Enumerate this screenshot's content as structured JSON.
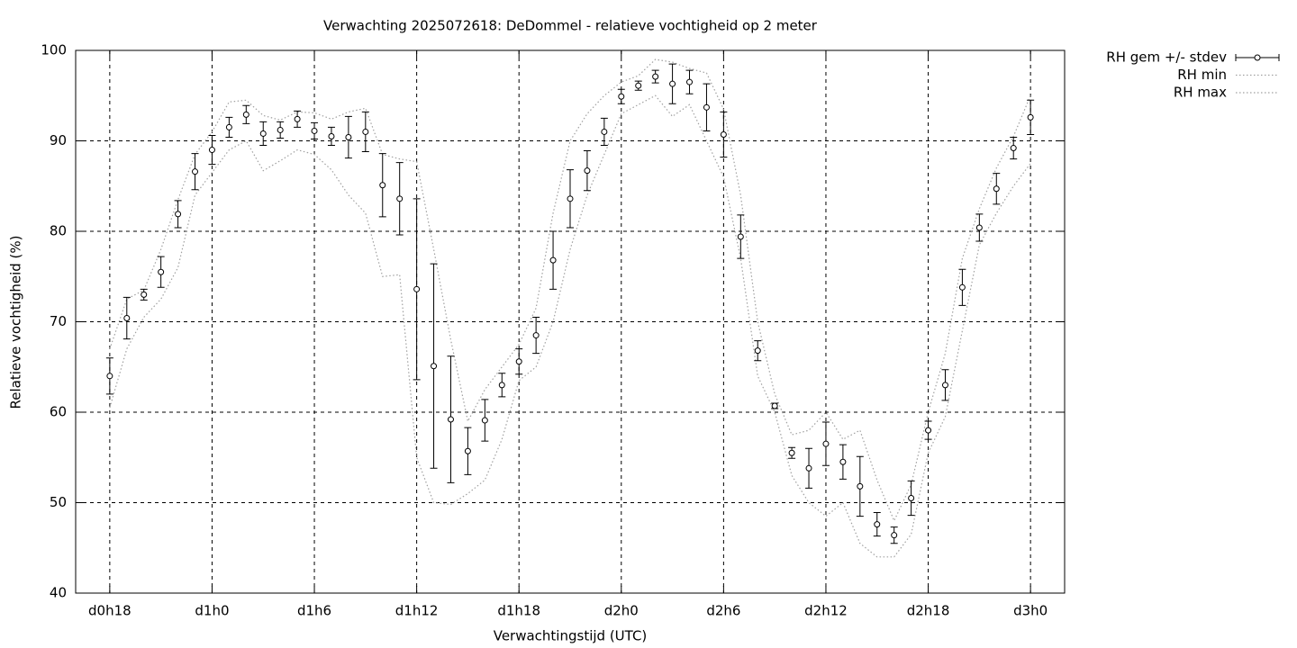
{
  "chart_data": {
    "type": "errorbar-line",
    "title": "Verwachting 2025072618: DeDommel - relatieve vochtigheid op 2 meter",
    "xlabel": "Verwachtingstijd (UTC)",
    "ylabel": "Relatieve vochtigheid (%)",
    "x": [
      18,
      19,
      20,
      21,
      22,
      23,
      24,
      25,
      26,
      27,
      28,
      29,
      30,
      31,
      32,
      33,
      34,
      35,
      36,
      37,
      38,
      39,
      40,
      41,
      42,
      43,
      44,
      45,
      46,
      47,
      48,
      49,
      50,
      51,
      52,
      53,
      54,
      55,
      56,
      57,
      58,
      59,
      60,
      61,
      62,
      63,
      64,
      65,
      66,
      67,
      68,
      69,
      70,
      71,
      72
    ],
    "series": [
      {
        "name": "RH gem +/- stdev",
        "color": "#000000",
        "style": "errorbars",
        "values": [
          64.0,
          70.4,
          73.0,
          75.5,
          81.9,
          86.6,
          89.0,
          91.5,
          92.9,
          90.8,
          91.2,
          92.4,
          91.1,
          90.5,
          90.4,
          91.0,
          85.1,
          83.6,
          73.6,
          65.1,
          59.2,
          55.7,
          59.1,
          63.0,
          65.6,
          68.5,
          76.8,
          83.6,
          86.7,
          91.0,
          94.9,
          96.1,
          97.1,
          96.3,
          96.5,
          93.7,
          90.7,
          79.4,
          66.8,
          60.7,
          55.5,
          53.8,
          56.5,
          54.5,
          51.8,
          47.6,
          46.4,
          50.5,
          58.0,
          63.0,
          73.8,
          80.4,
          84.7,
          89.2,
          92.6
        ],
        "errors": [
          2.0,
          2.3,
          0.6,
          1.7,
          1.5,
          2.0,
          1.6,
          1.1,
          1.0,
          1.3,
          0.9,
          0.9,
          0.9,
          1.0,
          2.3,
          2.2,
          3.5,
          4.0,
          10.0,
          11.3,
          7.0,
          2.6,
          2.3,
          1.3,
          1.4,
          2.0,
          3.2,
          3.2,
          2.2,
          1.5,
          0.8,
          0.5,
          0.7,
          2.2,
          1.3,
          2.6,
          2.5,
          2.4,
          1.1,
          0.3,
          0.6,
          2.2,
          2.4,
          1.9,
          3.3,
          1.3,
          0.9,
          1.9,
          1.0,
          1.7,
          2.0,
          1.5,
          1.7,
          1.2,
          1.9
        ]
      },
      {
        "name": "RH min",
        "color": "#a0a0a0",
        "style": "dotted",
        "values": [
          60.5,
          67,
          70.5,
          72.5,
          76,
          84,
          86.5,
          89,
          90,
          86.7,
          87.8,
          89,
          88.5,
          86.8,
          84,
          82,
          75,
          75.2,
          55,
          50,
          49.8,
          51,
          52.5,
          57,
          63.5,
          65,
          70,
          78,
          84,
          88.5,
          93,
          94,
          95,
          92.7,
          94,
          90,
          86,
          77,
          64,
          60,
          53,
          50,
          48.5,
          50,
          45.5,
          44,
          44,
          46.5,
          55.5,
          59.5,
          69,
          78.5,
          82,
          85,
          87.5
        ]
      },
      {
        "name": "RH max",
        "color": "#a0a0a0",
        "style": "dotted",
        "values": [
          67,
          72.5,
          73.5,
          78,
          83.5,
          88.5,
          91,
          94.3,
          94.5,
          92.8,
          92.3,
          93.2,
          93.1,
          92.4,
          93.2,
          93.6,
          88.5,
          88,
          87.7,
          78,
          68,
          59,
          62.5,
          65,
          67.5,
          71.5,
          82,
          90,
          93,
          95,
          96.5,
          97.2,
          99,
          98.7,
          98,
          97.5,
          93.5,
          84,
          70,
          62,
          57.5,
          58,
          60,
          57,
          58,
          52.5,
          48,
          52,
          60,
          66.5,
          77,
          82.5,
          87,
          90.5,
          95
        ]
      }
    ],
    "xlim": [
      16,
      74
    ],
    "xticks": [
      {
        "value": 18,
        "label": "d0h18"
      },
      {
        "value": 24,
        "label": "d1h0"
      },
      {
        "value": 30,
        "label": "d1h6"
      },
      {
        "value": 36,
        "label": "d1h12"
      },
      {
        "value": 42,
        "label": "d1h18"
      },
      {
        "value": 48,
        "label": "d2h0"
      },
      {
        "value": 54,
        "label": "d2h6"
      },
      {
        "value": 60,
        "label": "d2h12"
      },
      {
        "value": 66,
        "label": "d2h18"
      },
      {
        "value": 72,
        "label": "d3h0"
      }
    ],
    "ylim": [
      40,
      100
    ],
    "yticks": [
      40,
      50,
      60,
      70,
      80,
      90,
      100
    ],
    "grid": true,
    "legend": "outside-top-right"
  }
}
